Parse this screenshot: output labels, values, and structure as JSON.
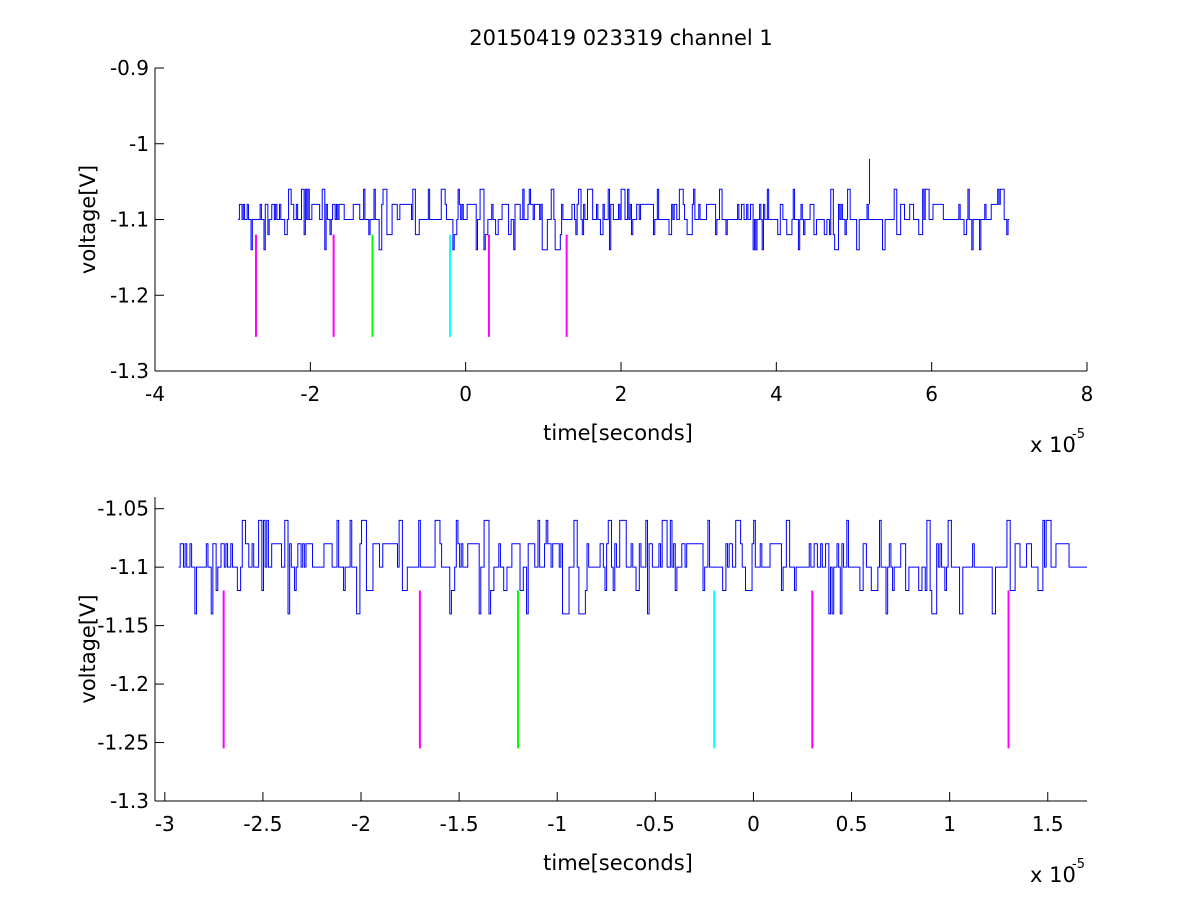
{
  "chart_data": [
    {
      "type": "line",
      "title": "20150419 023319 channel 1",
      "xlabel": "time[seconds]",
      "ylabel": "voltage[V]",
      "x_multiplier_label": "x 10",
      "x_multiplier_exponent": "-5",
      "xlim": [
        -4,
        8
      ],
      "ylim": [
        -1.3,
        -0.9
      ],
      "xticks": [
        -4,
        -2,
        0,
        2,
        4,
        6,
        8
      ],
      "xtick_labels": [
        "-4",
        "-2",
        "0",
        "2",
        "4",
        "6",
        "8"
      ],
      "yticks": [
        -1.3,
        -1.2,
        -1.1,
        -1,
        -0.9
      ],
      "ytick_labels": [
        "-1.3",
        "-1.2",
        "-1.1",
        "-1",
        "-0.9"
      ],
      "grid": false,
      "series": [
        {
          "color": "#0000ff",
          "x_range": [
            -2.93,
            7.0
          ],
          "baseline": -1.1,
          "levels": [
            -1.14,
            -1.12,
            -1.1,
            -1.08,
            -1.06
          ],
          "spike": {
            "x": 5.2,
            "y": -1.02
          }
        }
      ],
      "markers": [
        {
          "x": -2.7,
          "y_top": -1.12,
          "y_bottom": -1.255,
          "color": "#ff00ff"
        },
        {
          "x": -1.7,
          "y_top": -1.12,
          "y_bottom": -1.255,
          "color": "#ff00ff"
        },
        {
          "x": -1.2,
          "y_top": -1.12,
          "y_bottom": -1.255,
          "color": "#00ff00"
        },
        {
          "x": -0.2,
          "y_top": -1.12,
          "y_bottom": -1.255,
          "color": "#00ffff"
        },
        {
          "x": 0.3,
          "y_top": -1.12,
          "y_bottom": -1.255,
          "color": "#ff00ff"
        },
        {
          "x": 1.3,
          "y_top": -1.12,
          "y_bottom": -1.255,
          "color": "#ff00ff"
        }
      ]
    },
    {
      "type": "line",
      "title": "",
      "xlabel": "time[seconds]",
      "ylabel": "voltage[V]",
      "x_multiplier_label": "x 10",
      "x_multiplier_exponent": "-5",
      "xlim": [
        -3.05,
        1.7
      ],
      "ylim": [
        -1.3,
        -1.04
      ],
      "xticks": [
        -3,
        -2.5,
        -2,
        -1.5,
        -1,
        -0.5,
        0,
        0.5,
        1,
        1.5
      ],
      "xtick_labels": [
        "-3",
        "-2.5",
        "-2",
        "-1.5",
        "-1",
        "-0.5",
        "0",
        "0.5",
        "1",
        "1.5"
      ],
      "yticks": [
        -1.3,
        -1.25,
        -1.2,
        -1.15,
        -1.1,
        -1.05
      ],
      "ytick_labels": [
        "-1.3",
        "-1.25",
        "-1.2",
        "-1.15",
        "-1.1",
        "-1.05"
      ],
      "grid": false,
      "series": [
        {
          "color": "#0000ff",
          "x_range": [
            -2.93,
            1.7
          ],
          "baseline": -1.1,
          "levels": [
            -1.14,
            -1.12,
            -1.1,
            -1.08,
            -1.06
          ]
        }
      ],
      "markers": [
        {
          "x": -2.7,
          "y_top": -1.12,
          "y_bottom": -1.255,
          "color": "#ff00ff"
        },
        {
          "x": -1.7,
          "y_top": -1.12,
          "y_bottom": -1.255,
          "color": "#ff00ff"
        },
        {
          "x": -1.2,
          "y_top": -1.12,
          "y_bottom": -1.255,
          "color": "#00ff00"
        },
        {
          "x": -0.2,
          "y_top": -1.12,
          "y_bottom": -1.255,
          "color": "#00ffff"
        },
        {
          "x": 0.3,
          "y_top": -1.12,
          "y_bottom": -1.255,
          "color": "#ff00ff"
        },
        {
          "x": 1.3,
          "y_top": -1.12,
          "y_bottom": -1.255,
          "color": "#ff00ff"
        }
      ]
    }
  ]
}
